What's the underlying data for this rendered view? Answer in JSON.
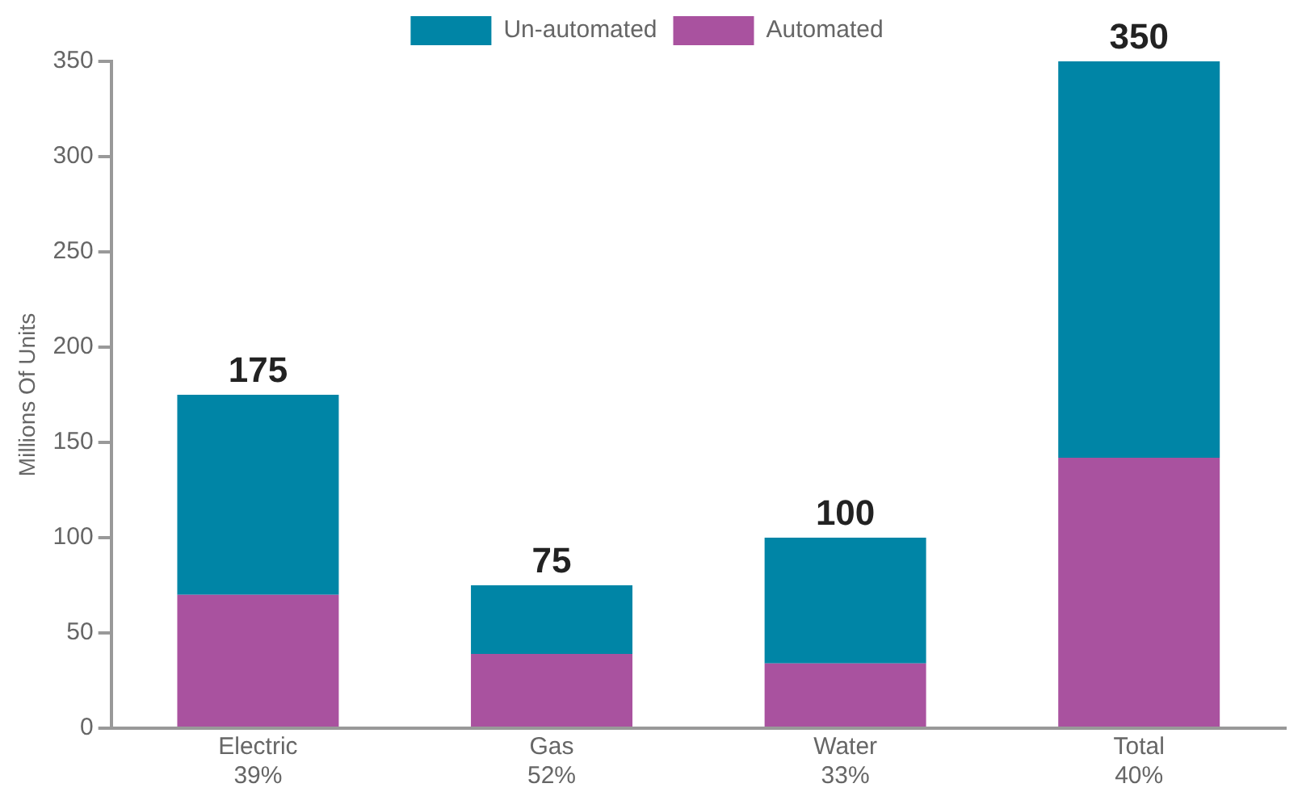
{
  "chart_data": {
    "type": "bar",
    "stacked": true,
    "ylabel": "Millions Of Units",
    "categories": [
      "Electric\n39%",
      "Gas\n52%",
      "Water\n33%",
      "Total\n40%"
    ],
    "series": [
      {
        "name": "Automated",
        "color": "#a9529f",
        "values": [
          70,
          39,
          34,
          142
        ]
      },
      {
        "name": "Un-automated",
        "color": "#0085a6",
        "values": [
          105,
          36,
          66,
          208
        ]
      }
    ],
    "totals": [
      "175",
      "75",
      "100",
      "350"
    ],
    "ylim": [
      0,
      350
    ],
    "yticks": [
      0,
      50,
      100,
      150,
      200,
      250,
      300,
      350
    ],
    "grid": false,
    "legend": "top left"
  }
}
